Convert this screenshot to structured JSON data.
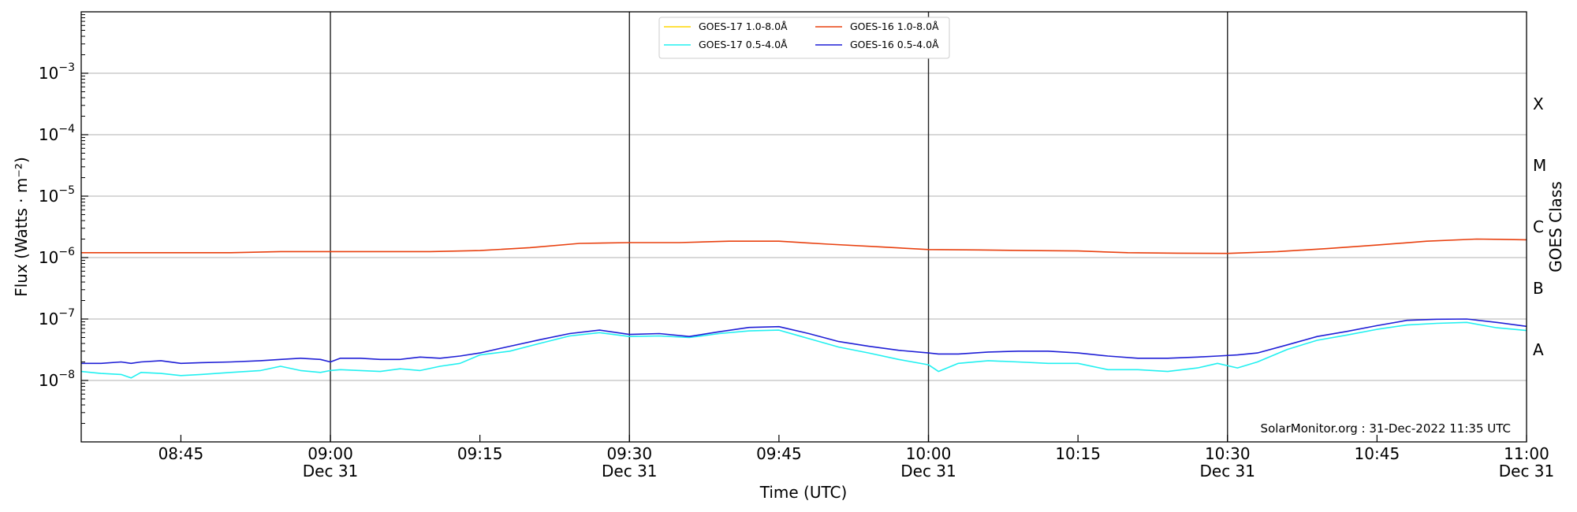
{
  "chart_data": {
    "type": "line",
    "title": "",
    "xlabel": "Time (UTC)",
    "ylabel": "Flux (Watts · m⁻²)",
    "ylabel_right": "GOES Class",
    "yscale": "log",
    "ylim": [
      1e-09,
      0.01
    ],
    "xlim": [
      "08:35",
      "11:00"
    ],
    "grid": "horizontal",
    "legend_position": "top-center",
    "credit": "SolarMonitor.org : 31-Dec-2022 11:35 UTC",
    "y_ticks": [
      {
        "base": "10",
        "exp": "−8",
        "value": 1e-08
      },
      {
        "base": "10",
        "exp": "−7",
        "value": 1e-07
      },
      {
        "base": "10",
        "exp": "−6",
        "value": 1e-06
      },
      {
        "base": "10",
        "exp": "−5",
        "value": 1e-05
      },
      {
        "base": "10",
        "exp": "−4",
        "value": 0.0001
      },
      {
        "base": "10",
        "exp": "−3",
        "value": 0.001
      }
    ],
    "x_ticks": [
      {
        "time": "08:45",
        "label": "08:45",
        "sub": ""
      },
      {
        "time": "09:00",
        "label": "09:00",
        "sub": "Dec 31"
      },
      {
        "time": "09:15",
        "label": "09:15",
        "sub": ""
      },
      {
        "time": "09:30",
        "label": "09:30",
        "sub": "Dec 31"
      },
      {
        "time": "09:45",
        "label": "09:45",
        "sub": ""
      },
      {
        "time": "10:00",
        "label": "10:00",
        "sub": "Dec 31"
      },
      {
        "time": "10:15",
        "label": "10:15",
        "sub": ""
      },
      {
        "time": "10:30",
        "label": "10:30",
        "sub": "Dec 31"
      },
      {
        "time": "10:45",
        "label": "10:45",
        "sub": ""
      },
      {
        "time": "11:00",
        "label": "11:00",
        "sub": "Dec 31"
      }
    ],
    "vertical_lines": [
      "09:00",
      "09:30",
      "10:00",
      "10:30"
    ],
    "goes_classes": [
      {
        "label": "A",
        "value": 1e-08
      },
      {
        "label": "B",
        "value": 1e-07
      },
      {
        "label": "C",
        "value": 1e-06
      },
      {
        "label": "M",
        "value": 1e-05
      },
      {
        "label": "X",
        "value": 0.0001
      }
    ],
    "series": [
      {
        "name": "GOES-17 1.0-8.0Å",
        "color": "#ffd700",
        "x": [],
        "y": []
      },
      {
        "name": "GOES-16 1.0-8.0Å",
        "color": "#e8400f",
        "x": [
          "08:35",
          "08:40",
          "08:45",
          "08:50",
          "08:55",
          "09:00",
          "09:05",
          "09:10",
          "09:15",
          "09:20",
          "09:25",
          "09:30",
          "09:35",
          "09:40",
          "09:45",
          "09:50",
          "09:55",
          "10:00",
          "10:05",
          "10:10",
          "10:15",
          "10:20",
          "10:25",
          "10:30",
          "10:35",
          "10:40",
          "10:45",
          "10:50",
          "10:55",
          "11:00"
        ],
        "y": [
          1.2e-06,
          1.2e-06,
          1.2e-06,
          1.2e-06,
          1.25e-06,
          1.25e-06,
          1.25e-06,
          1.25e-06,
          1.3e-06,
          1.45e-06,
          1.7e-06,
          1.75e-06,
          1.75e-06,
          1.85e-06,
          1.85e-06,
          1.65e-06,
          1.5e-06,
          1.35e-06,
          1.33e-06,
          1.3e-06,
          1.28e-06,
          1.2e-06,
          1.18e-06,
          1.17e-06,
          1.25e-06,
          1.4e-06,
          1.6e-06,
          1.85e-06,
          2e-06,
          1.95e-06
        ]
      },
      {
        "name": "GOES-17 0.5-4.0Å",
        "color": "#22f0f0",
        "x": [
          "08:35",
          "08:37",
          "08:39",
          "08:40",
          "08:41",
          "08:43",
          "08:45",
          "08:47",
          "08:50",
          "08:53",
          "08:55",
          "08:57",
          "08:59",
          "09:00",
          "09:01",
          "09:03",
          "09:05",
          "09:07",
          "09:09",
          "09:11",
          "09:13",
          "09:15",
          "09:18",
          "09:21",
          "09:24",
          "09:27",
          "09:30",
          "09:33",
          "09:36",
          "09:39",
          "09:42",
          "09:45",
          "09:48",
          "09:51",
          "09:54",
          "09:57",
          "10:00",
          "10:01",
          "10:03",
          "10:06",
          "10:09",
          "10:12",
          "10:15",
          "10:18",
          "10:21",
          "10:24",
          "10:27",
          "10:29",
          "10:31",
          "10:33",
          "10:36",
          "10:39",
          "10:42",
          "10:45",
          "10:48",
          "10:51",
          "10:54",
          "10:57",
          "11:00"
        ],
        "y": [
          1.4e-08,
          1.3e-08,
          1.25e-08,
          1.1e-08,
          1.35e-08,
          1.3e-08,
          1.2e-08,
          1.25e-08,
          1.35e-08,
          1.45e-08,
          1.7e-08,
          1.45e-08,
          1.35e-08,
          1.45e-08,
          1.5e-08,
          1.45e-08,
          1.4e-08,
          1.55e-08,
          1.45e-08,
          1.7e-08,
          1.9e-08,
          2.6e-08,
          3e-08,
          4e-08,
          5.3e-08,
          6e-08,
          5.2e-08,
          5.3e-08,
          5e-08,
          5.8e-08,
          6.4e-08,
          6.6e-08,
          4.8e-08,
          3.5e-08,
          2.8e-08,
          2.2e-08,
          1.8e-08,
          1.4e-08,
          1.9e-08,
          2.1e-08,
          2e-08,
          1.9e-08,
          1.9e-08,
          1.5e-08,
          1.5e-08,
          1.4e-08,
          1.6e-08,
          1.9e-08,
          1.6e-08,
          2e-08,
          3.2e-08,
          4.5e-08,
          5.5e-08,
          6.8e-08,
          8e-08,
          8.5e-08,
          8.8e-08,
          7.2e-08,
          6.5e-08
        ]
      },
      {
        "name": "GOES-16 0.5-4.0Å",
        "color": "#1f1fd6",
        "x": [
          "08:35",
          "08:37",
          "08:39",
          "08:40",
          "08:41",
          "08:43",
          "08:45",
          "08:47",
          "08:50",
          "08:53",
          "08:55",
          "08:57",
          "08:59",
          "09:00",
          "09:01",
          "09:03",
          "09:05",
          "09:07",
          "09:09",
          "09:11",
          "09:13",
          "09:15",
          "09:18",
          "09:21",
          "09:24",
          "09:27",
          "09:30",
          "09:33",
          "09:36",
          "09:39",
          "09:42",
          "09:45",
          "09:48",
          "09:51",
          "09:54",
          "09:57",
          "10:00",
          "10:01",
          "10:03",
          "10:06",
          "10:09",
          "10:12",
          "10:15",
          "10:18",
          "10:21",
          "10:24",
          "10:27",
          "10:29",
          "10:31",
          "10:33",
          "10:36",
          "10:39",
          "10:42",
          "10:45",
          "10:48",
          "10:51",
          "10:54",
          "10:57",
          "11:00"
        ],
        "y": [
          1.9e-08,
          1.9e-08,
          2e-08,
          1.9e-08,
          2e-08,
          2.1e-08,
          1.9e-08,
          1.95e-08,
          2e-08,
          2.1e-08,
          2.2e-08,
          2.3e-08,
          2.2e-08,
          2e-08,
          2.3e-08,
          2.3e-08,
          2.2e-08,
          2.2e-08,
          2.4e-08,
          2.3e-08,
          2.5e-08,
          2.8e-08,
          3.6e-08,
          4.6e-08,
          5.8e-08,
          6.6e-08,
          5.6e-08,
          5.8e-08,
          5.2e-08,
          6.2e-08,
          7.3e-08,
          7.5e-08,
          5.8e-08,
          4.3e-08,
          3.6e-08,
          3.1e-08,
          2.8e-08,
          2.7e-08,
          2.7e-08,
          2.9e-08,
          3e-08,
          3e-08,
          2.8e-08,
          2.5e-08,
          2.3e-08,
          2.3e-08,
          2.4e-08,
          2.5e-08,
          2.6e-08,
          2.8e-08,
          3.8e-08,
          5.2e-08,
          6.3e-08,
          7.8e-08,
          9.5e-08,
          9.9e-08,
          1e-07,
          8.8e-08,
          7.6e-08
        ]
      }
    ]
  }
}
